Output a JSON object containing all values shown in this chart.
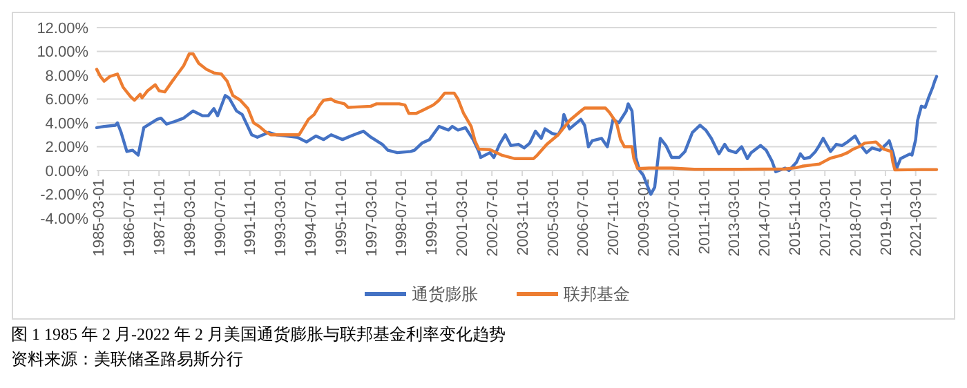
{
  "chart_data": {
    "type": "line",
    "xlim": [
      "1985-02",
      "2022-02"
    ],
    "xticks": [
      "1985-03-01",
      "1986-07-01",
      "1987-11-01",
      "1989-03-01",
      "1990-07-01",
      "1991-11-01",
      "1993-03-01",
      "1994-07-01",
      "1995-11-01",
      "1997-03-01",
      "1998-07-01",
      "1999-11-01",
      "2001-03-01",
      "2002-07-01",
      "2003-11-01",
      "2005-03-01",
      "2006-07-01",
      "2007-11-01",
      "2009-03-01",
      "2010-07-01",
      "2011-11-01",
      "2013-03-01",
      "2014-07-01",
      "2015-11-01",
      "2017-03-01",
      "2018-07-01",
      "2019-11-01",
      "2021-03-01"
    ],
    "ylim": [
      -4,
      12
    ],
    "yticks": [
      {
        "value": -4,
        "label": "-4.00%"
      },
      {
        "value": -2,
        "label": "-2.00%"
      },
      {
        "value": 0,
        "label": "0.00%"
      },
      {
        "value": 2,
        "label": "2.00%"
      },
      {
        "value": 4,
        "label": "4.00%"
      },
      {
        "value": 6,
        "label": "6.00%"
      },
      {
        "value": 8,
        "label": "8.00%"
      },
      {
        "value": 10,
        "label": "10.00%"
      },
      {
        "value": 12,
        "label": "12.00%"
      }
    ],
    "grid": "y",
    "legend": "bottom",
    "marker": "none",
    "line_style": "solid",
    "series": [
      {
        "name": "通货膨胀",
        "color": "#4472c4",
        "x": [
          "1985-02",
          "1985-06",
          "1985-12",
          "1986-01",
          "1986-03",
          "1986-06",
          "1986-09",
          "1986-12",
          "1987-03",
          "1987-10",
          "1987-12",
          "1988-03",
          "1988-07",
          "1988-12",
          "1989-05",
          "1989-10",
          "1990-01",
          "1990-04",
          "1990-06",
          "1990-10",
          "1990-12",
          "1991-04",
          "1991-07",
          "1991-12",
          "1992-03",
          "1992-09",
          "1993-01",
          "1993-12",
          "1994-05",
          "1994-10",
          "1995-02",
          "1995-06",
          "1995-12",
          "1996-06",
          "1996-11",
          "1997-03",
          "1997-09",
          "1997-12",
          "1998-05",
          "1998-12",
          "1999-02",
          "1999-06",
          "1999-10",
          "2000-03",
          "2000-08",
          "2000-10",
          "2001-01",
          "2001-05",
          "2001-09",
          "2001-12",
          "2002-01",
          "2002-06",
          "2002-08",
          "2002-11",
          "2003-02",
          "2003-05",
          "2003-09",
          "2003-12",
          "2004-03",
          "2004-06",
          "2004-09",
          "2004-11",
          "2005-03",
          "2005-06",
          "2005-08",
          "2005-09",
          "2005-12",
          "2006-06",
          "2006-08",
          "2006-10",
          "2006-12",
          "2007-05",
          "2007-08",
          "2007-11",
          "2008-02",
          "2008-06",
          "2008-07",
          "2008-09",
          "2008-11",
          "2009-01",
          "2009-03",
          "2009-07",
          "2009-09",
          "2009-12",
          "2010-03",
          "2010-06",
          "2010-10",
          "2011-01",
          "2011-05",
          "2011-09",
          "2011-12",
          "2012-03",
          "2012-07",
          "2012-10",
          "2012-12",
          "2013-04",
          "2013-07",
          "2013-10",
          "2013-12",
          "2014-05",
          "2014-08",
          "2014-11",
          "2015-01",
          "2015-06",
          "2015-08",
          "2015-12",
          "2016-02",
          "2016-04",
          "2016-07",
          "2016-10",
          "2016-12",
          "2017-02",
          "2017-06",
          "2017-09",
          "2017-12",
          "2018-03",
          "2018-07",
          "2018-09",
          "2019-01",
          "2019-04",
          "2019-08",
          "2019-12",
          "2020-01",
          "2020-03",
          "2020-05",
          "2020-07",
          "2020-12",
          "2021-01",
          "2021-03",
          "2021-04",
          "2021-06",
          "2021-08",
          "2021-10",
          "2021-12",
          "2022-01",
          "2022-02"
        ],
        "values": [
          3.6,
          3.7,
          3.8,
          4.0,
          3.2,
          1.6,
          1.7,
          1.3,
          3.6,
          4.3,
          4.4,
          3.9,
          4.1,
          4.4,
          5.0,
          4.6,
          4.6,
          5.2,
          4.6,
          6.3,
          6.1,
          5.0,
          4.7,
          3.0,
          2.8,
          3.2,
          3.0,
          2.8,
          2.4,
          2.9,
          2.6,
          3.0,
          2.6,
          3.0,
          3.3,
          2.8,
          2.2,
          1.7,
          1.5,
          1.6,
          1.7,
          2.3,
          2.6,
          3.7,
          3.4,
          3.7,
          3.4,
          3.6,
          2.6,
          1.6,
          1.1,
          1.5,
          1.1,
          2.2,
          3.0,
          2.1,
          2.2,
          1.9,
          2.3,
          3.3,
          2.7,
          3.5,
          3.1,
          3.0,
          3.6,
          4.7,
          3.5,
          4.3,
          3.8,
          2.0,
          2.5,
          2.7,
          2.0,
          4.3,
          4.0,
          5.0,
          5.6,
          5.0,
          1.1,
          0.0,
          -0.4,
          -2.0,
          -1.4,
          2.7,
          2.1,
          1.1,
          1.1,
          1.6,
          3.2,
          3.8,
          3.4,
          2.7,
          1.4,
          2.2,
          1.7,
          1.5,
          2.0,
          1.0,
          1.5,
          2.1,
          1.7,
          0.8,
          -0.1,
          0.2,
          0.0,
          0.7,
          1.4,
          1.0,
          1.1,
          1.6,
          2.1,
          2.7,
          1.6,
          2.2,
          2.1,
          2.4,
          2.9,
          2.3,
          1.5,
          1.9,
          1.7,
          2.3,
          2.5,
          1.5,
          0.2,
          1.0,
          1.4,
          1.3,
          2.6,
          4.2,
          5.4,
          5.3,
          6.2,
          7.0,
          7.5,
          7.9
        ]
      },
      {
        "name": "联邦基金",
        "color": "#ed7d31",
        "x": [
          "1985-02",
          "1985-04",
          "1985-06",
          "1985-09",
          "1986-01",
          "1986-04",
          "1986-08",
          "1986-10",
          "1987-01",
          "1987-02",
          "1987-05",
          "1987-09",
          "1987-11",
          "1988-02",
          "1988-06",
          "1988-12",
          "1989-03",
          "1989-05",
          "1989-08",
          "1989-12",
          "1990-04",
          "1990-08",
          "1990-11",
          "1991-02",
          "1991-06",
          "1991-10",
          "1992-01",
          "1992-04",
          "1992-07",
          "1992-10",
          "1993-06",
          "1994-01",
          "1994-03",
          "1994-06",
          "1994-09",
          "1994-12",
          "1995-02",
          "1995-06",
          "1995-08",
          "1996-01",
          "1996-03",
          "1997-03",
          "1997-06",
          "1998-06",
          "1998-09",
          "1998-11",
          "1999-03",
          "1999-07",
          "1999-12",
          "2000-03",
          "2000-06",
          "2000-11",
          "2001-01",
          "2001-04",
          "2001-08",
          "2001-10",
          "2001-12",
          "2002-06",
          "2002-12",
          "2003-07",
          "2004-05",
          "2004-07",
          "2004-12",
          "2005-06",
          "2005-12",
          "2006-06",
          "2006-08",
          "2007-07",
          "2007-09",
          "2007-12",
          "2008-01",
          "2008-03",
          "2008-05",
          "2008-09",
          "2008-10",
          "2008-12",
          "2009-06",
          "2010-06",
          "2011-06",
          "2013-06",
          "2015-06",
          "2015-12",
          "2016-03",
          "2016-12",
          "2017-03",
          "2017-06",
          "2017-12",
          "2018-03",
          "2018-06",
          "2018-09",
          "2018-12",
          "2019-06",
          "2019-08",
          "2019-10",
          "2020-02",
          "2020-03",
          "2020-04",
          "2021-06",
          "2022-02"
        ],
        "values": [
          8.5,
          7.9,
          7.5,
          7.9,
          8.1,
          7.0,
          6.2,
          5.9,
          6.4,
          6.1,
          6.7,
          7.2,
          6.7,
          6.6,
          7.5,
          8.8,
          9.8,
          9.8,
          9.0,
          8.5,
          8.2,
          8.1,
          7.5,
          6.3,
          5.9,
          5.2,
          4.0,
          3.7,
          3.3,
          3.0,
          3.0,
          3.0,
          3.5,
          4.3,
          4.7,
          5.5,
          5.9,
          6.0,
          5.8,
          5.6,
          5.3,
          5.4,
          5.6,
          5.6,
          5.5,
          4.8,
          4.8,
          5.1,
          5.5,
          5.9,
          6.5,
          6.5,
          6.0,
          4.8,
          3.7,
          2.5,
          1.8,
          1.75,
          1.3,
          1.0,
          1.0,
          1.3,
          2.2,
          3.0,
          4.2,
          5.0,
          5.25,
          5.25,
          4.9,
          4.2,
          3.9,
          2.6,
          2.0,
          2.0,
          1.0,
          0.16,
          0.2,
          0.2,
          0.1,
          0.1,
          0.13,
          0.24,
          0.36,
          0.54,
          0.79,
          1.04,
          1.3,
          1.5,
          1.8,
          2.0,
          2.3,
          2.4,
          2.1,
          1.8,
          1.6,
          0.65,
          0.05,
          0.08,
          0.08
        ]
      }
    ],
    "annotations": [
      "图 1 1985 年 2 月-2022 年 2 月美国通货膨胀与联邦基金利率变化趋势",
      "资料来源：美联储圣路易斯分行"
    ]
  }
}
